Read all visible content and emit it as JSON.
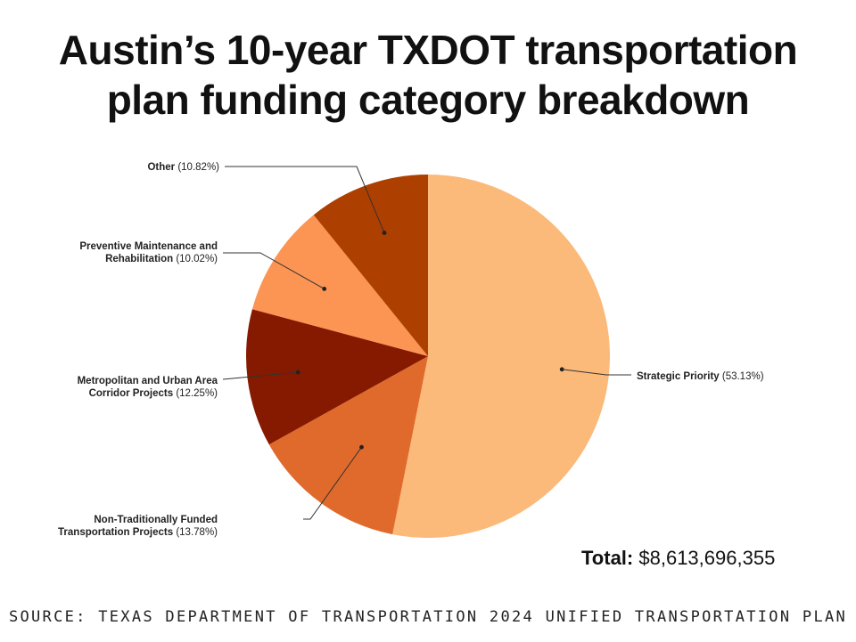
{
  "title_lines": [
    "Austin’s 10-year TXDOT transportation",
    "plan funding category breakdown"
  ],
  "total": {
    "label": "Total:",
    "value": "$8,613,696,355"
  },
  "source": "SOURCE: TEXAS DEPARTMENT OF TRANSPORTATION 2024 UNIFIED TRANSPORTATION PLAN",
  "chart_data": {
    "type": "pie",
    "slices": [
      {
        "label": "Strategic Priority",
        "pct_text": "(53.13%)",
        "value": 53.13,
        "color": "#FBB97A"
      },
      {
        "label": "Non-Traditionally Funded Transportation Projects",
        "lines": [
          "Non-Traditionally Funded",
          "Transportation Projects"
        ],
        "pct_text": "(13.78%)",
        "value": 13.78,
        "color": "#E06A2C"
      },
      {
        "label": "Metropolitan and Urban Area Corridor Projects",
        "lines": [
          "Metropolitan and Urban Area",
          "Corridor Projects"
        ],
        "pct_text": "(12.25%)",
        "value": 12.25,
        "color": "#851A00"
      },
      {
        "label": "Preventive Maintenance and Rehabilitation",
        "lines": [
          "Preventive Maintenance and",
          "Rehabilitation"
        ],
        "pct_text": "(10.02%)",
        "value": 10.02,
        "color": "#FC9453"
      },
      {
        "label": "Other",
        "pct_text": "(10.82%)",
        "value": 10.82,
        "color": "#AD3F00"
      }
    ]
  }
}
